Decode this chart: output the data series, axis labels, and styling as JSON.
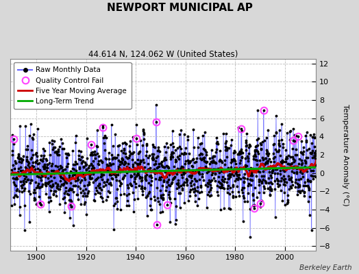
{
  "title": "NEWPORT MUNICIPAL AP",
  "subtitle": "44.614 N, 124.062 W (United States)",
  "ylabel": "Temperature Anomaly (°C)",
  "credit": "Berkeley Earth",
  "year_start": 1890,
  "year_end": 2013,
  "ylim": [
    -8.5,
    12.5
  ],
  "yticks": [
    -8,
    -6,
    -4,
    -2,
    0,
    2,
    4,
    6,
    8,
    10,
    12
  ],
  "xticks": [
    1900,
    1920,
    1940,
    1960,
    1980,
    2000
  ],
  "fig_bg": "#d8d8d8",
  "plot_bg": "#ffffff",
  "raw_line_color": "#6666ff",
  "raw_marker_color": "#000000",
  "qc_fail_color": "#ff44ff",
  "moving_avg_color": "#cc0000",
  "trend_color": "#00aa00",
  "grid_color": "#bbbbbb",
  "seed": 17
}
